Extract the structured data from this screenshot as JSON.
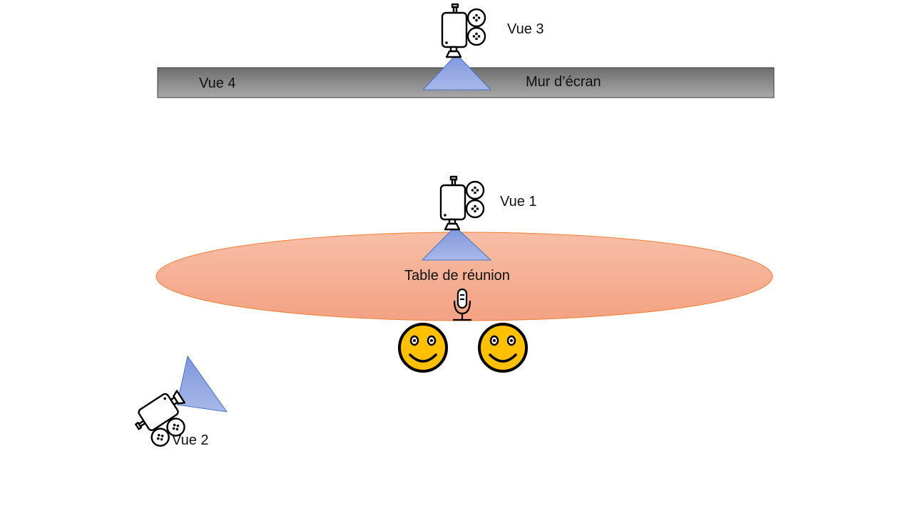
{
  "labels": {
    "vue1": "Vue 1",
    "vue2": "Vue 2",
    "vue3": "Vue 3",
    "vue4": "Vue 4",
    "screen_wall": "Mur d’écran",
    "meeting_table": "Table de réunion"
  },
  "colors": {
    "wall": "#8a8a8a",
    "table": "#f4a98a",
    "table_border": "#ed7d31",
    "camera_cone": "#8ea3e0",
    "cone_border": "#4472c4",
    "smiley_face": "#ffc000",
    "outline": "#000000"
  },
  "icons": {
    "camera": "film-camera-icon",
    "microphone": "microphone-icon",
    "participant": "smiley-face-icon"
  }
}
